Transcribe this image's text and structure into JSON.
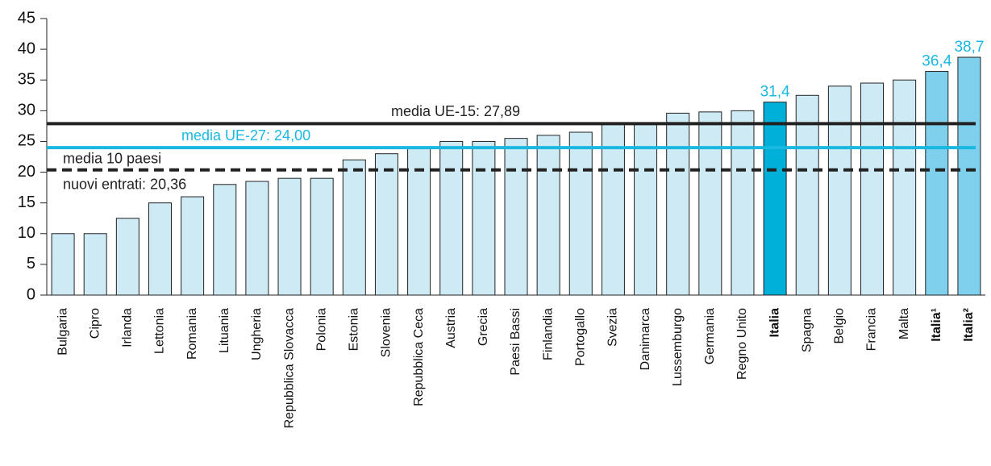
{
  "chart_data": {
    "type": "bar",
    "categories": [
      "Bulgaria",
      "Cipro",
      "Irlanda",
      "Lettonia",
      "Romania",
      "Lituania",
      "Ungheria",
      "Repubblica Slovacca",
      "Polonia",
      "Estonia",
      "Slovenia",
      "Repubblica Ceca",
      "Austria",
      "Grecia",
      "Paesi Bassi",
      "Finlandia",
      "Portogallo",
      "Svezia",
      "Danimarca",
      "Lussemburgo",
      "Germania",
      "Regno Unito",
      "Italia",
      "Spagna",
      "Belgio",
      "Francia",
      "Malta",
      "Italia¹",
      "Italia²"
    ],
    "values": [
      10,
      10,
      12.5,
      15,
      16,
      18,
      18.5,
      19,
      19,
      22,
      23,
      24,
      25,
      25,
      25.5,
      26,
      26.5,
      28,
      28,
      29.6,
      29.8,
      30,
      31.4,
      32.5,
      34,
      34.5,
      35,
      36.4,
      38.7
    ],
    "value_labels": [
      null,
      null,
      null,
      null,
      null,
      null,
      null,
      null,
      null,
      null,
      null,
      null,
      null,
      null,
      null,
      null,
      null,
      null,
      null,
      null,
      null,
      null,
      "31,4",
      null,
      null,
      null,
      null,
      "36,4",
      "38,7"
    ],
    "colors": [
      "#cdeaf5",
      "#cdeaf5",
      "#cdeaf5",
      "#cdeaf5",
      "#cdeaf5",
      "#cdeaf5",
      "#cdeaf5",
      "#cdeaf5",
      "#cdeaf5",
      "#cdeaf5",
      "#cdeaf5",
      "#cdeaf5",
      "#cdeaf5",
      "#cdeaf5",
      "#cdeaf5",
      "#cdeaf5",
      "#cdeaf5",
      "#cdeaf5",
      "#cdeaf5",
      "#cdeaf5",
      "#cdeaf5",
      "#cdeaf5",
      "#00b0d8",
      "#cdeaf5",
      "#cdeaf5",
      "#cdeaf5",
      "#cdeaf5",
      "#7fd0ec",
      "#7fd0ec"
    ],
    "ylim": [
      0,
      45
    ],
    "yticks": [
      0,
      5,
      10,
      15,
      20,
      25,
      30,
      35,
      40,
      45
    ],
    "reference_lines": [
      {
        "value": 27.89,
        "color": "#222222",
        "dashed": false,
        "label": [
          "media UE-15: 27,89"
        ]
      },
      {
        "value": 24.0,
        "color": "#1ab8e0",
        "dashed": false,
        "label": [
          "media UE-27: 24,00"
        ]
      },
      {
        "value": 20.36,
        "color": "#222222",
        "dashed": true,
        "label": [
          "media 10 paesi",
          "nuovi entrati: 20,36"
        ]
      }
    ]
  }
}
